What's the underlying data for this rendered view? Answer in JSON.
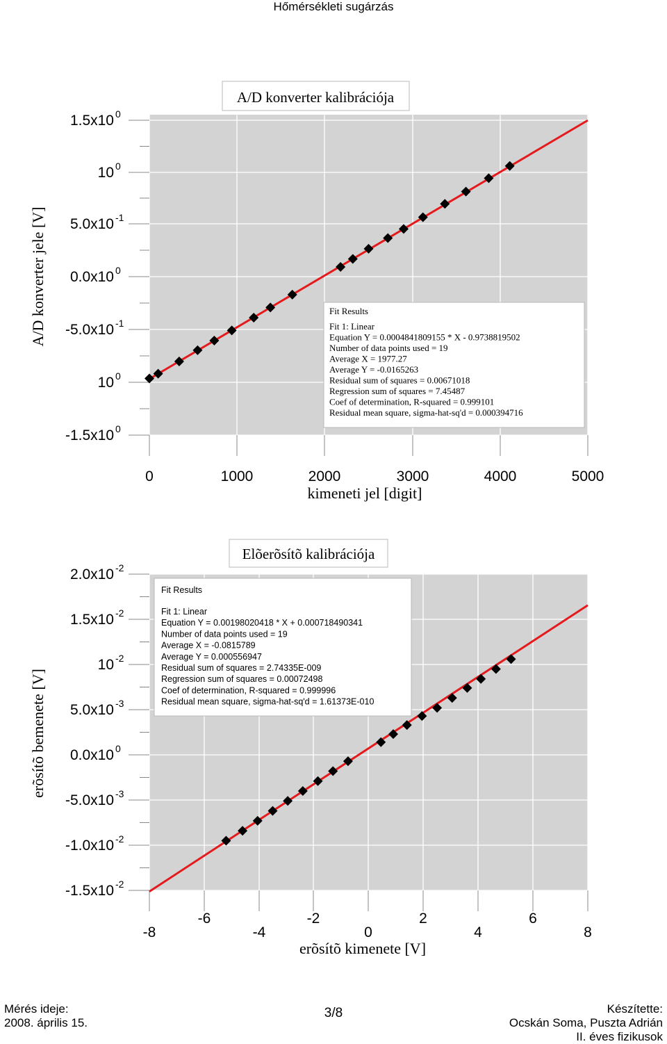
{
  "page": {
    "header": "Hőmérsékleti sugárzás",
    "footer_left": [
      "Mérés ideje:",
      "2008. április 15."
    ],
    "footer_center": "3/8",
    "footer_right": [
      "Készítette:",
      "Ocskán Soma, Puszta Adrián",
      "II. éves fizikusok"
    ]
  },
  "chart_data": [
    {
      "type": "scatter",
      "title": "A/D konverter kalibrációja",
      "xlabel": "kimeneti jel [digit]",
      "ylabel": "A/D konverter jele [V]",
      "xlim": [
        0,
        5000
      ],
      "ylim": [
        -1.5,
        1.5
      ],
      "x_ticks": [
        "0",
        "1000",
        "2000",
        "3000",
        "4000",
        "5000"
      ],
      "y_ticks": [
        {
          "base": "1.5x10",
          "exp": "0"
        },
        {
          "base": "10",
          "exp": "0"
        },
        {
          "base": "5.0x10",
          "exp": "-1"
        },
        {
          "base": "0.0x10",
          "exp": "0"
        },
        {
          "base": "-5.0x10",
          "exp": "-1"
        },
        {
          "base": "10",
          "exp": "0"
        },
        {
          "base": "-1.5x10",
          "exp": "0"
        }
      ],
      "grid": true,
      "fit_line": {
        "slope": 0.0004841809155,
        "intercept": -0.9738819502,
        "color": "#e41a1c"
      },
      "series": [
        {
          "x": [
            0,
            100,
            340,
            550,
            740,
            940,
            1190,
            1380,
            1630,
            2180,
            2320,
            2500,
            2720,
            2900,
            3120,
            3370,
            3610,
            3870,
            4110
          ],
          "y": [
            -0.97,
            -0.925,
            -0.81,
            -0.705,
            -0.615,
            -0.52,
            -0.4,
            -0.305,
            -0.185,
            0.075,
            0.15,
            0.245,
            0.345,
            0.43,
            0.54,
            0.665,
            0.78,
            0.905,
            1.02
          ]
        }
      ],
      "fit_results": {
        "heading": "Fit Results",
        "lines": [
          "Fit 1: Linear",
          "Equation Y = 0.0004841809155 * X - 0.9738819502",
          "Number of data points used = 19",
          "Average X = 1977.27",
          "Average Y = -0.0165263",
          "Residual sum of squares = 0.00671018",
          "Regression sum of squares = 7.45487",
          "Coef of determination, R-squared = 0.999101",
          "Residual mean square, sigma-hat-sq'd = 0.000394716"
        ]
      }
    },
    {
      "type": "scatter",
      "title": "Elõerõsítõ kalibrációja",
      "xlabel": "erõsítõ kimenete [V]",
      "ylabel": "erõsítõ bemenete [V]",
      "xlim": [
        -8,
        8
      ],
      "ylim": [
        -0.015,
        0.02
      ],
      "x_ticks": [
        "-8",
        "-6",
        "-4",
        "-2",
        "0",
        "2",
        "4",
        "6",
        "8"
      ],
      "y_ticks": [
        {
          "base": "2.0x10",
          "exp": "-2"
        },
        {
          "base": "1.5x10",
          "exp": "-2"
        },
        {
          "base": "10",
          "exp": "-2"
        },
        {
          "base": "5.0x10",
          "exp": "-3"
        },
        {
          "base": "0.0x10",
          "exp": "0"
        },
        {
          "base": "-5.0x10",
          "exp": "-3"
        },
        {
          "base": "-1.0x10",
          "exp": "-2"
        },
        {
          "base": "-1.5x10",
          "exp": "-2"
        }
      ],
      "grid": true,
      "fit_line": {
        "slope": 0.00198020418,
        "intercept": 0.000718490341,
        "color": "#e41a1c"
      },
      "series": [
        {
          "x": [
            -5.2,
            -4.6,
            -4.05,
            -3.5,
            -2.95,
            -2.4,
            -1.85,
            -1.3,
            -0.75,
            0.45,
            0.9,
            1.4,
            1.95,
            2.5,
            3.05,
            3.6,
            4.1,
            4.65,
            5.2
          ],
          "y": [
            -0.0095,
            -0.0084,
            -0.0073,
            -0.0062,
            -0.0051,
            -0.004,
            -0.0029,
            -0.0018,
            -0.0007,
            0.0014,
            0.0023,
            0.0033,
            0.0043,
            0.0052,
            0.0063,
            0.0074,
            0.0084,
            0.0095,
            0.0106
          ]
        }
      ],
      "fit_results": {
        "heading": "Fit Results",
        "lines": [
          "Fit 1: Linear",
          "Equation Y = 0.00198020418 * X + 0.000718490341",
          "Number of data points used = 19",
          "Average X = -0.0815789",
          "Average Y = 0.000556947",
          "Residual sum of squares = 2.74335E-009",
          "Regression sum of squares = 0.00072498",
          "Coef of determination, R-squared = 0.999996",
          "Residual mean square, sigma-hat-sq'd = 1.61373E-010"
        ]
      }
    }
  ]
}
